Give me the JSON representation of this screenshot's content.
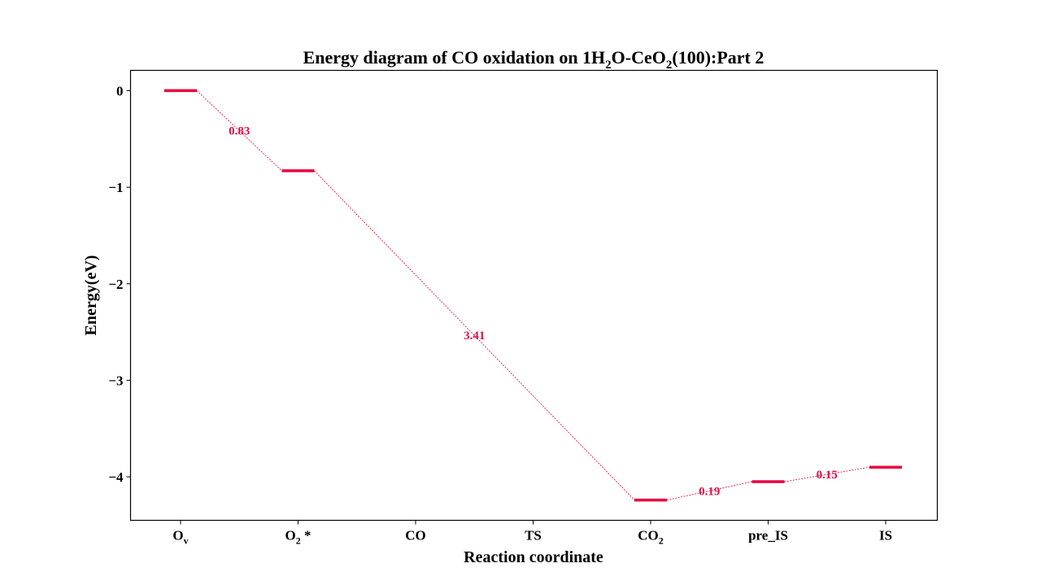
{
  "chart_data": {
    "type": "line",
    "title": {
      "pre": "Energy diagram of CO oxidation on 1H",
      "sub1": "2",
      "mid": "O-CeO",
      "sub2": "2",
      "post": "(100):Part 2"
    },
    "xlabel": "Reaction coordinate",
    "ylabel": "Energy(eV)",
    "categories": [
      {
        "main": "O",
        "sub": "v",
        "suffix": ""
      },
      {
        "main": "O",
        "sub": "2",
        "suffix": " *"
      },
      {
        "main": "CO",
        "sub": "",
        "suffix": ""
      },
      {
        "main": "TS",
        "sub": "",
        "suffix": ""
      },
      {
        "main": "CO",
        "sub": "2",
        "suffix": ""
      },
      {
        "main": "pre_IS",
        "sub": "",
        "suffix": ""
      },
      {
        "main": "IS",
        "sub": "",
        "suffix": ""
      }
    ],
    "levels": [
      {
        "category_index": 0,
        "energy": 0.0
      },
      {
        "category_index": 1,
        "energy": -0.83
      },
      {
        "category_index": 4,
        "energy": -4.24
      },
      {
        "category_index": 5,
        "energy": -4.05
      },
      {
        "category_index": 6,
        "energy": -3.9
      }
    ],
    "barrier_labels": [
      "0.83",
      "3.41",
      "0.19",
      "0.15"
    ],
    "yticks": [
      0,
      -1,
      -2,
      -3,
      -4
    ],
    "ylim": [
      -4.45,
      0.21
    ],
    "grid": false,
    "colors": {
      "levels": "#e8003f",
      "connector": "#e8003f",
      "labels": "#e0104a"
    }
  }
}
